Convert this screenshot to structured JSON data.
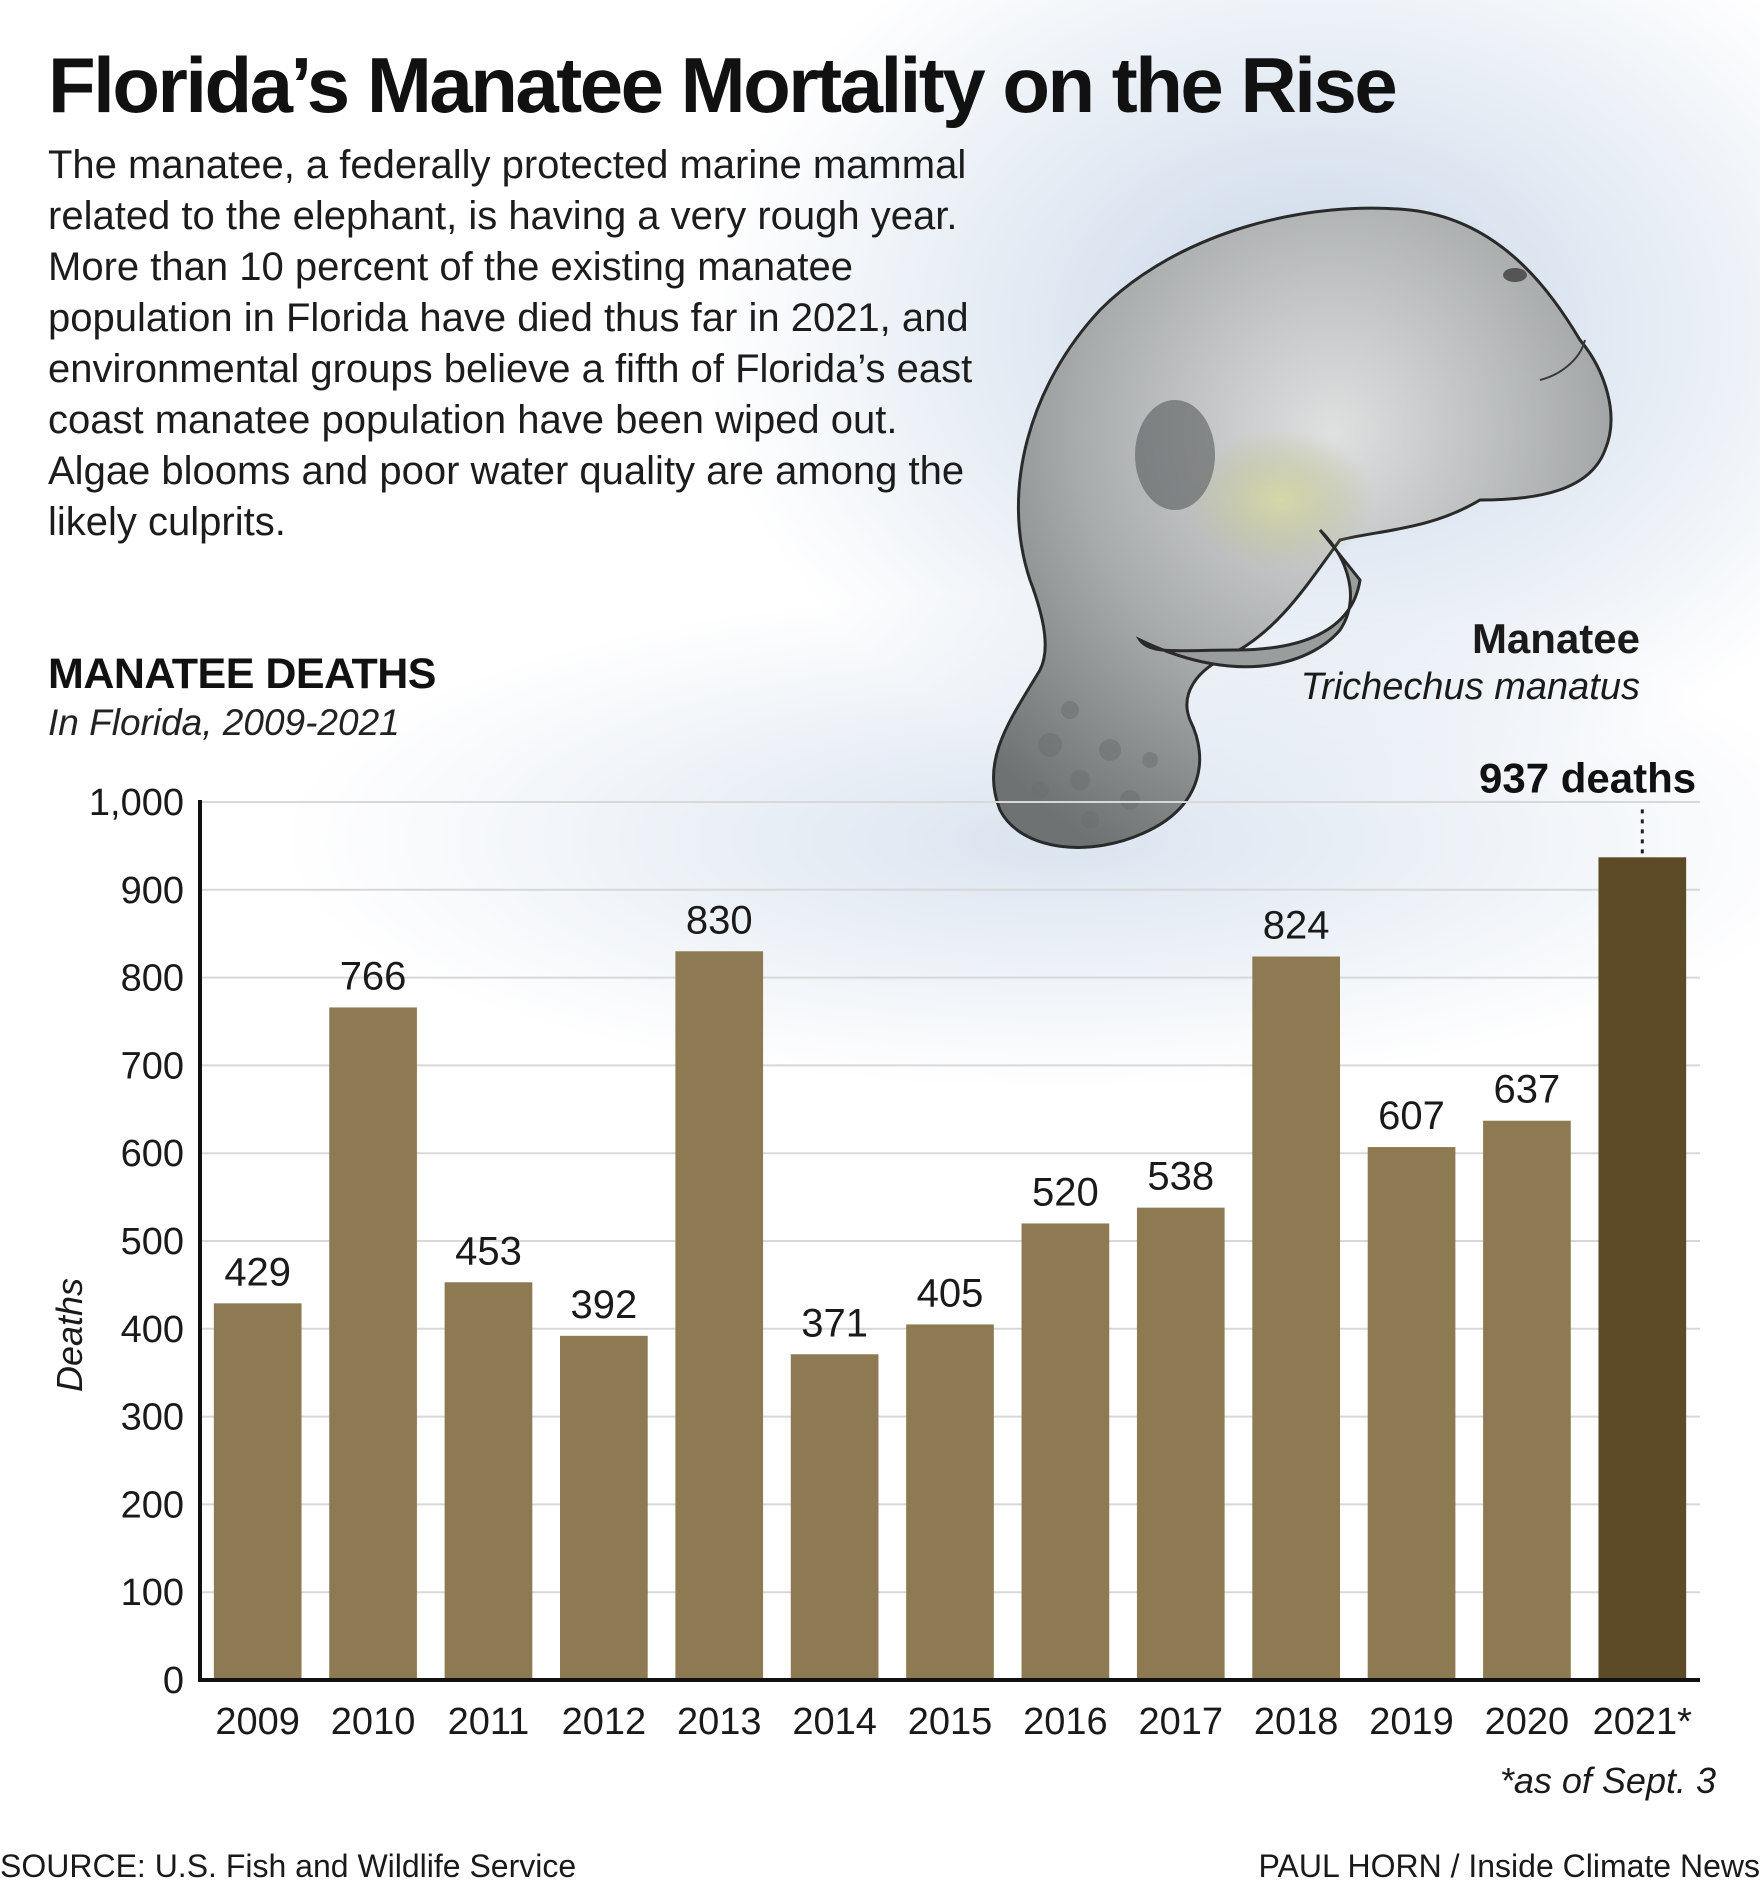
{
  "title": "Florida’s Manatee Mortality on the Rise",
  "intro": "The manatee, a federally protected marine mammal related to the elephant, is having a very rough year. More than 10 percent of the existing manatee population in Florida have died thus far in 2021, and environmental groups believe a fifth of Florida’s east coast manatee population have been wiped out. Algae blooms and poor water quality are among the likely culprits.",
  "illustration": {
    "name": "Manatee",
    "scientific_name": "Trichechus manatus"
  },
  "chart_data": {
    "type": "bar",
    "title": "MANATEE DEATHS",
    "subtitle": "In Florida, 2009-2021",
    "ylabel": "Deaths",
    "xlabel": "",
    "ylim": [
      0,
      1000
    ],
    "yticks": [
      "0",
      "100",
      "200",
      "300",
      "400",
      "500",
      "600",
      "700",
      "800",
      "900",
      "1,000"
    ],
    "grid": true,
    "categories": [
      "2009",
      "2010",
      "2011",
      "2012",
      "2013",
      "2014",
      "2015",
      "2016",
      "2017",
      "2018",
      "2019",
      "2020",
      "2021*"
    ],
    "values": [
      429,
      766,
      453,
      392,
      830,
      371,
      405,
      520,
      538,
      824,
      607,
      637,
      937
    ],
    "value_labels": [
      "429",
      "766",
      "453",
      "392",
      "830",
      "371",
      "405",
      "520",
      "538",
      "824",
      "607",
      "637",
      ""
    ],
    "highlight": {
      "category": "2021*",
      "label": "937 deaths"
    },
    "colors": {
      "bar": "#8e7a52",
      "highlight_bar": "#5d4a26",
      "grid": "#d8d8d8"
    },
    "footnote": "*as of Sept. 3"
  },
  "source": "SOURCE: U.S. Fish and Wildlife Service",
  "credit": "PAUL HORN / Inside Climate News"
}
